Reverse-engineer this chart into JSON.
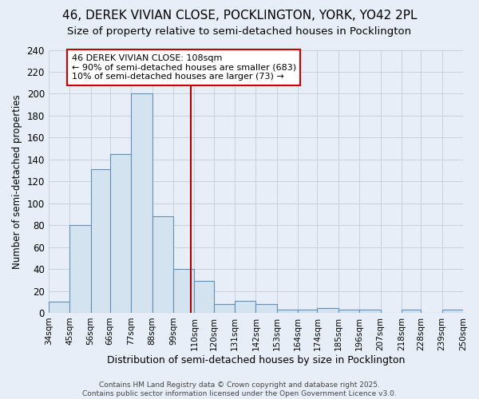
{
  "title": "46, DEREK VIVIAN CLOSE, POCKLINGTON, YORK, YO42 2PL",
  "subtitle": "Size of property relative to semi-detached houses in Pocklington",
  "xlabel": "Distribution of semi-detached houses by size in Pocklington",
  "ylabel": "Number of semi-detached properties",
  "bar_color": "#d4e3f0",
  "bar_edge_color": "#6090b8",
  "background_color": "#e8eef8",
  "plot_bg_color": "#e8eef8",
  "grid_color": "#c8d0dc",
  "bins": [
    34,
    45,
    56,
    66,
    77,
    88,
    99,
    110,
    120,
    131,
    142,
    153,
    164,
    174,
    185,
    196,
    207,
    218,
    228,
    239,
    250
  ],
  "heights": [
    10,
    80,
    131,
    145,
    200,
    88,
    40,
    29,
    8,
    11,
    8,
    3,
    3,
    4,
    3,
    3,
    0,
    3,
    0,
    3
  ],
  "tick_labels": [
    "34sqm",
    "45sqm",
    "56sqm",
    "66sqm",
    "77sqm",
    "88sqm",
    "99sqm",
    "110sqm",
    "120sqm",
    "131sqm",
    "142sqm",
    "153sqm",
    "164sqm",
    "174sqm",
    "185sqm",
    "196sqm",
    "207sqm",
    "218sqm",
    "228sqm",
    "239sqm",
    "250sqm"
  ],
  "ylim": [
    0,
    240
  ],
  "yticks": [
    0,
    20,
    40,
    60,
    80,
    100,
    120,
    140,
    160,
    180,
    200,
    220,
    240
  ],
  "property_line_x": 108,
  "annotation_text": "46 DEREK VIVIAN CLOSE: 108sqm\n← 90% of semi-detached houses are smaller (683)\n10% of semi-detached houses are larger (73) →",
  "annotation_box_color": "#ffffff",
  "annotation_box_edge_color": "#cc0000",
  "footer_text": "Contains HM Land Registry data © Crown copyright and database right 2025.\nContains public sector information licensed under the Open Government Licence v3.0."
}
